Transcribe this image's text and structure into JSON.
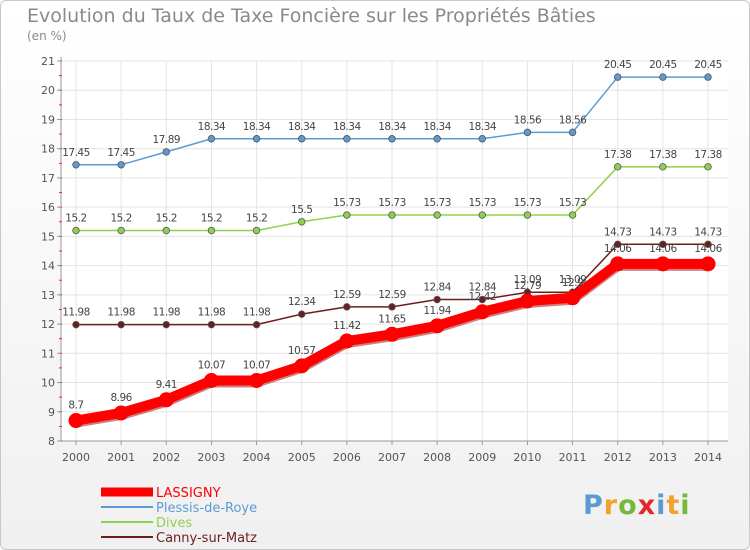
{
  "header": {
    "title": "Evolution du Taux de Taxe Foncière sur les Propriétés Bâties",
    "subtitle": "(en %)"
  },
  "logo": {
    "text": "Proxiti",
    "letters": [
      {
        "ch": "P",
        "color": "#5c9bd1"
      },
      {
        "ch": "r",
        "color": "#f2a02e"
      },
      {
        "ch": "o",
        "color": "#76b83a"
      },
      {
        "ch": "x",
        "color": "#e4252a"
      },
      {
        "ch": "i",
        "color": "#5c9bd1"
      },
      {
        "ch": "t",
        "color": "#f2a02e"
      },
      {
        "ch": "i",
        "color": "#76b83a"
      }
    ]
  },
  "chart_data": {
    "type": "line",
    "title": "Evolution du Taux de Taxe Foncière sur les Propriétés Bâties",
    "ylabel": "(en %)",
    "xlabel": "",
    "x": [
      "2000",
      "2001",
      "2002",
      "2003",
      "2004",
      "2005",
      "2006",
      "2007",
      "2008",
      "2009",
      "2010",
      "2011",
      "2012",
      "2013",
      "2014"
    ],
    "ylim": [
      8,
      21
    ],
    "yticks": [
      8,
      9,
      10,
      11,
      12,
      13,
      14,
      15,
      16,
      17,
      18,
      19,
      20,
      21
    ],
    "grid": true,
    "legend_position": "bottom-left",
    "series": [
      {
        "name": "Canny-sur-Matz",
        "color": "#6b1e1e",
        "values": [
          11.98,
          11.98,
          11.98,
          11.98,
          11.98,
          12.34,
          12.59,
          12.59,
          12.84,
          12.84,
          13.09,
          13.09,
          14.73,
          14.73,
          14.73
        ],
        "labels": [
          "11.98",
          "11.98",
          "11.98",
          "11.98",
          "11.98",
          "12.34",
          "12.59",
          "12.59",
          "12.84",
          "12.84",
          "13.09",
          "13.09",
          "14.73",
          "14.73",
          "14.73"
        ]
      },
      {
        "name": "Dives",
        "color": "#8fd14f",
        "values": [
          15.2,
          15.2,
          15.2,
          15.2,
          15.2,
          15.5,
          15.73,
          15.73,
          15.73,
          15.73,
          15.73,
          15.73,
          17.38,
          17.38,
          17.38
        ],
        "labels": [
          "15.2",
          "15.2",
          "15.2",
          "15.2",
          "15.2",
          "15.5",
          "15.73",
          "15.73",
          "15.73",
          "15.73",
          "15.73",
          "15.73",
          "17.38",
          "17.38",
          "17.38"
        ]
      },
      {
        "name": "Plessis-de-Roye",
        "color": "#5b9bd5",
        "values": [
          17.45,
          17.45,
          17.89,
          18.34,
          18.34,
          18.34,
          18.34,
          18.34,
          18.34,
          18.34,
          18.56,
          18.56,
          20.45,
          20.45,
          20.45
        ],
        "labels": [
          "17.45",
          "17.45",
          "17.89",
          "18.34",
          "18.34",
          "18.34",
          "18.34",
          "18.34",
          "18.34",
          "18.34",
          "18.56",
          "18.56",
          "20.45",
          "20.45",
          "20.45"
        ]
      },
      {
        "name": "LASSIGNY",
        "color": "#ff0000",
        "values": [
          8.7,
          8.96,
          9.41,
          10.07,
          10.07,
          10.57,
          11.42,
          11.65,
          11.94,
          12.42,
          12.79,
          12.9,
          14.06,
          14.06,
          14.06
        ],
        "labels": [
          "8.7",
          "8.96",
          "9.41",
          "10.07",
          "10.07",
          "10.57",
          "11.42",
          "11.65",
          "11.94",
          "12.42",
          "12.79",
          "12.9",
          "14.06",
          "14.06",
          "14.06"
        ]
      }
    ],
    "legend": [
      "LASSIGNY",
      "Plessis-de-Roye",
      "Dives",
      "Canny-sur-Matz"
    ]
  }
}
